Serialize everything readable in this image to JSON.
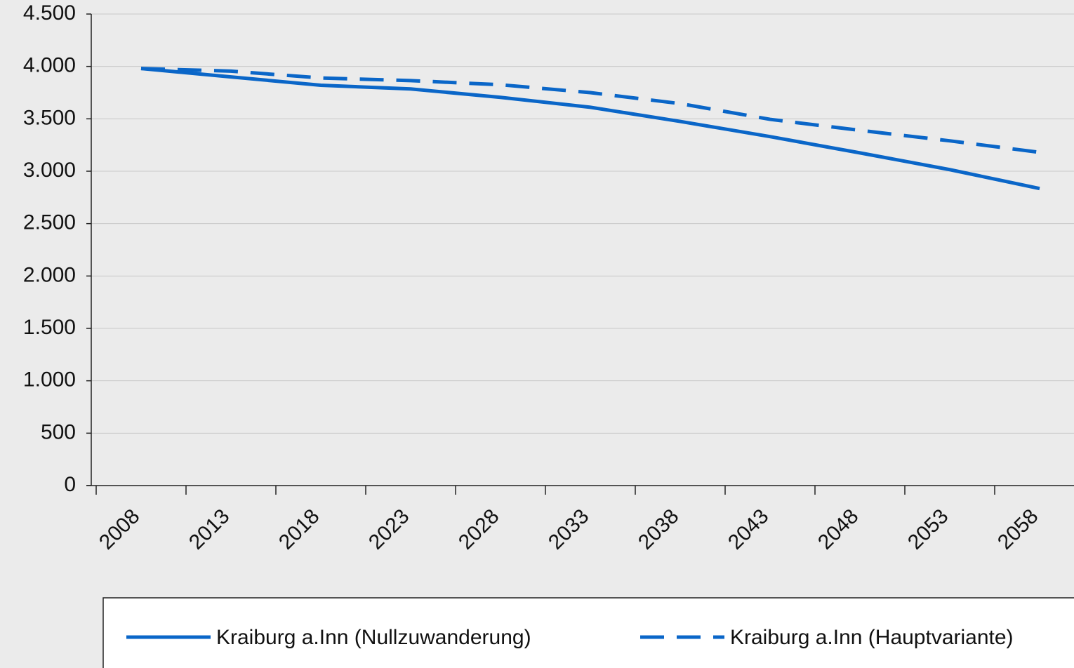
{
  "chart_data": {
    "type": "line",
    "categories": [
      "2008",
      "2013",
      "2018",
      "2023",
      "2028",
      "2033",
      "2038",
      "2043",
      "2048",
      "2053",
      "2058"
    ],
    "series": [
      {
        "name": "Kraiburg a.Inn (Nullzuwanderung)",
        "color": "#0a66c8",
        "dash": false,
        "values": [
          3980,
          3900,
          3820,
          3785,
          3705,
          3610,
          3475,
          3330,
          3175,
          3015,
          2835
        ]
      },
      {
        "name": "Kraiburg a.Inn (Hauptvariante)",
        "color": "#0a66c8",
        "dash": true,
        "values": [
          3980,
          3955,
          3890,
          3865,
          3825,
          3750,
          3645,
          3495,
          3390,
          3290,
          3180
        ]
      }
    ],
    "ylim": [
      0,
      4500
    ],
    "yticks": [
      0,
      500,
      {
        "value": 1000,
        "label": "1.000"
      },
      {
        "value": 1500,
        "label": "1.500"
      },
      {
        "value": 2000,
        "label": "2.000"
      },
      {
        "value": 2500,
        "label": "2.500"
      },
      {
        "value": 3000,
        "label": "3.000"
      },
      {
        "value": 3500,
        "label": "3.500"
      },
      {
        "value": 4000,
        "label": "4.000"
      },
      {
        "value": 4500,
        "label": "4.500"
      }
    ],
    "grid": true
  }
}
